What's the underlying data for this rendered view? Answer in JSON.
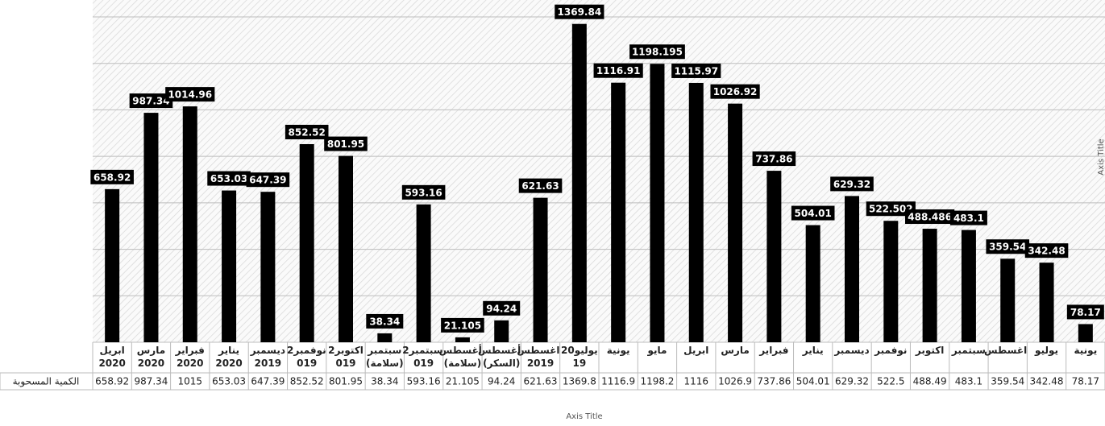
{
  "chart_data": {
    "type": "bar",
    "x_axis_title": "Axis Title",
    "y_axis_title": "Axis Title",
    "categories": [
      "ابريل\n2020",
      "مارس\n2020",
      "فبراير\n2020",
      "يناير\n2020",
      "ديسمبر\n2019",
      "نوفمبر2\n019",
      "اكتوبر2\n019",
      "سبتمبر\n(سلامة)",
      "سبتمبر2\n019",
      "أغسطس\n(سلامة)",
      "أغسطس\n(السكر)",
      "اغسطس\n2019",
      "يوليو20\n19",
      "يونية",
      "مايو",
      "ابريل",
      "مارس",
      "فبراير",
      "يناير",
      "ديسمبر",
      "نوفمبر",
      "اكتوبر",
      "سبتمبر",
      "اغسطس",
      "يوليو",
      "يونية"
    ],
    "values": [
      658.92,
      987.34,
      1014.96,
      653.03,
      647.39,
      852.52,
      801.95,
      38.34,
      593.16,
      21.105,
      94.24,
      621.63,
      1369.84,
      1116.91,
      1198.195,
      1115.97,
      1026.92,
      737.86,
      504.01,
      629.32,
      522.502,
      488.486,
      483.1,
      359.54,
      342.48,
      78.17
    ],
    "color": "#000000",
    "ylim": [
      0,
      1400
    ],
    "yticks": [
      0,
      200,
      400,
      600,
      800,
      1000,
      1200,
      1400
    ],
    "grid": true,
    "data_table": {
      "row_label": "الكمية المسحوبة",
      "values": [
        658.92,
        987.34,
        1015,
        653.03,
        647.39,
        852.52,
        801.95,
        38.34,
        593.16,
        21.105,
        94.24,
        621.63,
        1369.8,
        1116.9,
        1198.2,
        1116,
        1026.9,
        737.86,
        504.01,
        629.32,
        522.5,
        488.49,
        483.1,
        359.54,
        342.48,
        78.17
      ]
    }
  }
}
